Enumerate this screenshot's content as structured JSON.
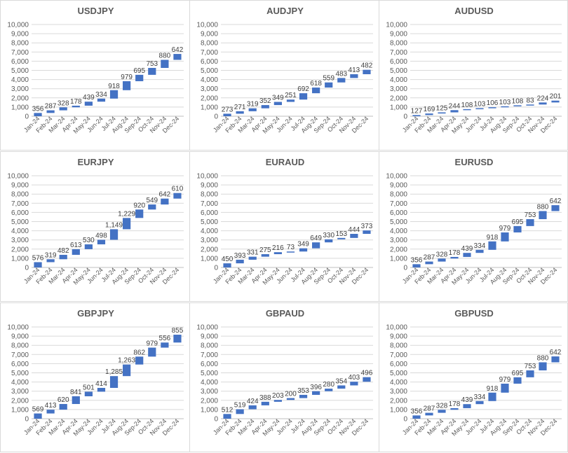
{
  "colors": {
    "bar": "#4472c4",
    "grid": "#d9d9d9",
    "text": "#595959"
  },
  "chart_data": [
    {
      "type": "bar",
      "subtype": "waterfall",
      "title": "USDJPY",
      "categories": [
        "Jan-24",
        "Feb-24",
        "Mar-24",
        "Apr-24",
        "May-24",
        "Jun-24",
        "Jul-24",
        "Aug-24",
        "Sep-24",
        "Oct-24",
        "Nov-24",
        "Dec-24"
      ],
      "values": [
        356,
        287,
        328,
        178,
        439,
        334,
        918,
        979,
        695,
        753,
        880,
        642
      ],
      "labels": [
        "356",
        "287",
        "328",
        "178",
        "439",
        "334",
        "918",
        "979",
        "695",
        "753",
        "880",
        "642"
      ],
      "ylim": [
        0,
        10000
      ],
      "yticks": [
        "0",
        "1,000",
        "2,000",
        "3,000",
        "4,000",
        "5,000",
        "6,000",
        "7,000",
        "8,000",
        "9,000",
        "10,000"
      ],
      "grid": true
    },
    {
      "type": "bar",
      "subtype": "waterfall",
      "title": "AUDJPY",
      "categories": [
        "Jan-24",
        "Feb-24",
        "Mar-24",
        "Apr-24",
        "May-24",
        "Jun-24",
        "Jul-24",
        "Aug-24",
        "Sep-24",
        "Oct-24",
        "Nov-24",
        "Dec-24"
      ],
      "values": [
        273,
        271,
        319,
        352,
        349,
        251,
        692,
        618,
        559,
        483,
        413,
        482
      ],
      "labels": [
        "273",
        "271",
        "319",
        "352",
        "349",
        "251",
        "692",
        "618",
        "559",
        "483",
        "413",
        "482"
      ],
      "ylim": [
        0,
        10000
      ],
      "yticks": [
        "0",
        "1,000",
        "2,000",
        "3,000",
        "4,000",
        "5,000",
        "6,000",
        "7,000",
        "8,000",
        "9,000",
        "10,000"
      ],
      "grid": true
    },
    {
      "type": "bar",
      "subtype": "waterfall",
      "title": "AUDUSD",
      "categories": [
        "Jan-24",
        "Feb-24",
        "Mar-24",
        "Apr-24",
        "May-24",
        "Jun-24",
        "Jul-24",
        "Aug-24",
        "Sep-24",
        "Oct-24",
        "Nov-24",
        "Dec-24"
      ],
      "values": [
        127,
        169,
        125,
        244,
        108,
        103,
        106,
        103,
        108,
        83,
        224,
        201
      ],
      "labels": [
        "127",
        "169",
        "125",
        "244",
        "108",
        "103",
        "106",
        "103",
        "108",
        "83",
        "224",
        "201"
      ],
      "ylim": [
        0,
        10000
      ],
      "yticks": [
        "0",
        "1,000",
        "2,000",
        "3,000",
        "4,000",
        "5,000",
        "6,000",
        "7,000",
        "8,000",
        "9,000",
        "10,000"
      ],
      "grid": true
    },
    {
      "type": "bar",
      "subtype": "waterfall",
      "title": "EURJPY",
      "categories": [
        "Jan-24",
        "Feb-24",
        "Mar-24",
        "Apr-24",
        "May-24",
        "Jun-24",
        "Jul-24",
        "Aug-24",
        "Sep-24",
        "Oct-24",
        "Nov-24",
        "Dec-24"
      ],
      "values": [
        576,
        319,
        482,
        613,
        530,
        498,
        1149,
        1229,
        920,
        549,
        642,
        610
      ],
      "labels": [
        "576",
        "319",
        "482",
        "613",
        "530",
        "498",
        "1,149",
        "1,229",
        "920",
        "549",
        "642",
        "610"
      ],
      "ylim": [
        0,
        10000
      ],
      "yticks": [
        "0",
        "1,000",
        "2,000",
        "3,000",
        "4,000",
        "5,000",
        "6,000",
        "7,000",
        "8,000",
        "9,000",
        "10,000"
      ],
      "grid": true
    },
    {
      "type": "bar",
      "subtype": "waterfall",
      "title": "EURAUD",
      "categories": [
        "Jan-24",
        "Feb-24",
        "Mar-24",
        "Apr-24",
        "May-24",
        "Jun-24",
        "Jul-24",
        "Aug-24",
        "Sep-24",
        "Oct-24",
        "Nov-24",
        "Dec-24"
      ],
      "values": [
        450,
        393,
        331,
        275,
        216,
        73,
        349,
        649,
        330,
        153,
        444,
        373
      ],
      "labels": [
        "450",
        "393",
        "331",
        "275",
        "216",
        "73",
        "349",
        "649",
        "330",
        "153",
        "444",
        "373"
      ],
      "ylim": [
        0,
        10000
      ],
      "yticks": [
        "0",
        "1,000",
        "2,000",
        "3,000",
        "4,000",
        "5,000",
        "6,000",
        "7,000",
        "8,000",
        "9,000",
        "10,000"
      ],
      "grid": true
    },
    {
      "type": "bar",
      "subtype": "waterfall",
      "title": "EURUSD",
      "categories": [
        "Jan-24",
        "Feb-24",
        "Mar-24",
        "Apr-24",
        "May-24",
        "Jun-24",
        "Jul-24",
        "Aug-24",
        "Sep-24",
        "Oct-24",
        "Nov-24",
        "Dec-24"
      ],
      "values": [
        356,
        287,
        328,
        178,
        439,
        334,
        918,
        979,
        695,
        753,
        880,
        642
      ],
      "labels": [
        "356",
        "287",
        "328",
        "178",
        "439",
        "334",
        "918",
        "979",
        "695",
        "753",
        "880",
        "642"
      ],
      "ylim": [
        0,
        10000
      ],
      "yticks": [
        "0",
        "1,000",
        "2,000",
        "3,000",
        "4,000",
        "5,000",
        "6,000",
        "7,000",
        "8,000",
        "9,000",
        "10,000"
      ],
      "grid": true
    },
    {
      "type": "bar",
      "subtype": "waterfall",
      "title": "GBPJPY",
      "categories": [
        "Jan-24",
        "Feb-24",
        "Mar-24",
        "Apr-24",
        "May-24",
        "Jun-24",
        "Jul-24",
        "Aug-24",
        "Sep-24",
        "Oct-24",
        "Nov-24",
        "Dec-24"
      ],
      "values": [
        569,
        413,
        620,
        841,
        501,
        414,
        1285,
        1263,
        862,
        979,
        556,
        855
      ],
      "labels": [
        "569",
        "413",
        "620",
        "841",
        "501",
        "414",
        "1,285",
        "1,263",
        "862",
        "979",
        "556",
        "855"
      ],
      "ylim": [
        0,
        10000
      ],
      "yticks": [
        "0",
        "1,000",
        "2,000",
        "3,000",
        "4,000",
        "5,000",
        "6,000",
        "7,000",
        "8,000",
        "9,000",
        "10,000"
      ],
      "grid": true
    },
    {
      "type": "bar",
      "subtype": "waterfall",
      "title": "GBPAUD",
      "categories": [
        "Jan-24",
        "Feb-24",
        "Mar-24",
        "Apr-24",
        "May-24",
        "Jun-24",
        "Jul-24",
        "Aug-24",
        "Sep-24",
        "Oct-24",
        "Nov-24",
        "Dec-24"
      ],
      "values": [
        512,
        519,
        424,
        388,
        203,
        200,
        353,
        396,
        280,
        354,
        403,
        496
      ],
      "labels": [
        "512",
        "519",
        "424",
        "388",
        "203",
        "200",
        "353",
        "396",
        "280",
        "354",
        "403",
        "496"
      ],
      "ylim": [
        0,
        10000
      ],
      "yticks": [
        "0",
        "1,000",
        "2,000",
        "3,000",
        "4,000",
        "5,000",
        "6,000",
        "7,000",
        "8,000",
        "9,000",
        "10,000"
      ],
      "grid": true
    },
    {
      "type": "bar",
      "subtype": "waterfall",
      "title": "GBPUSD",
      "categories": [
        "Jan-24",
        "Feb-24",
        "Mar-24",
        "Apr-24",
        "May-24",
        "Jun-24",
        "Jul-24",
        "Aug-24",
        "Sep-24",
        "Oct-24",
        "Nov-24",
        "Dec-24"
      ],
      "values": [
        356,
        287,
        328,
        178,
        439,
        334,
        918,
        979,
        695,
        753,
        880,
        642
      ],
      "labels": [
        "356",
        "287",
        "328",
        "178",
        "439",
        "334",
        "918",
        "979",
        "695",
        "753",
        "880",
        "642"
      ],
      "ylim": [
        0,
        10000
      ],
      "yticks": [
        "0",
        "1,000",
        "2,000",
        "3,000",
        "4,000",
        "5,000",
        "6,000",
        "7,000",
        "8,000",
        "9,000",
        "10,000"
      ],
      "grid": true
    }
  ]
}
